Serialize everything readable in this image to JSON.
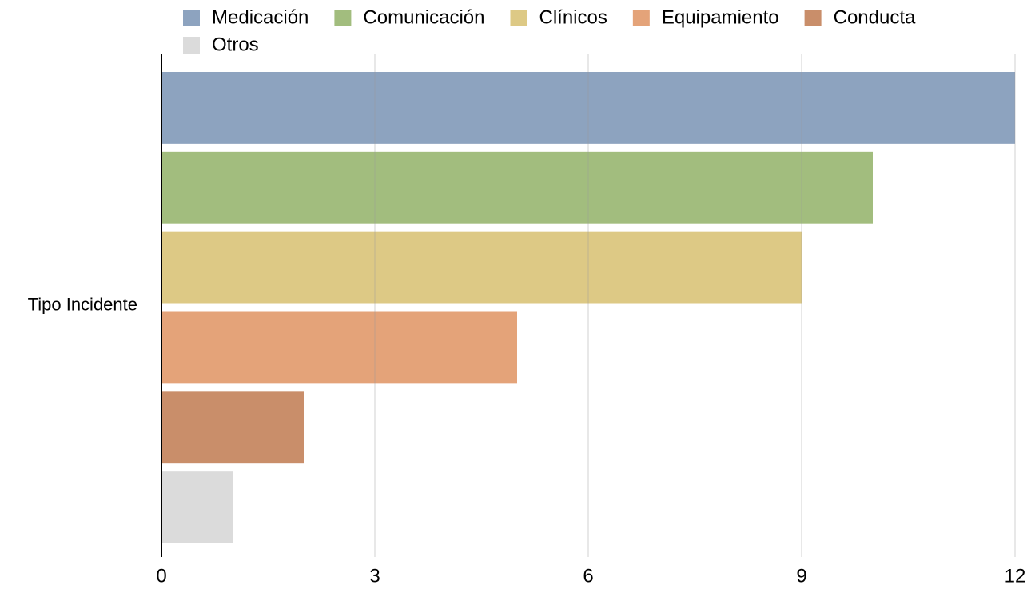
{
  "chart_data": {
    "type": "bar",
    "orientation": "horizontal",
    "categories": [
      "Tipo Incidente"
    ],
    "series": [
      {
        "name": "Medicación",
        "color": "#8da3bf",
        "values": [
          12
        ]
      },
      {
        "name": "Comunicación",
        "color": "#a2bd7e",
        "values": [
          10
        ]
      },
      {
        "name": "Clínicos",
        "color": "#ddc985",
        "values": [
          9
        ]
      },
      {
        "name": "Equipamiento",
        "color": "#e4a379",
        "values": [
          5
        ]
      },
      {
        "name": "Conducta",
        "color": "#c98e6a",
        "values": [
          2
        ]
      },
      {
        "name": "Otros",
        "color": "#dbdbdb",
        "values": [
          1
        ]
      }
    ],
    "xlim": [
      0,
      12
    ],
    "xticks": [
      0,
      3,
      6,
      9,
      12
    ],
    "grid": true,
    "legend": "top"
  }
}
